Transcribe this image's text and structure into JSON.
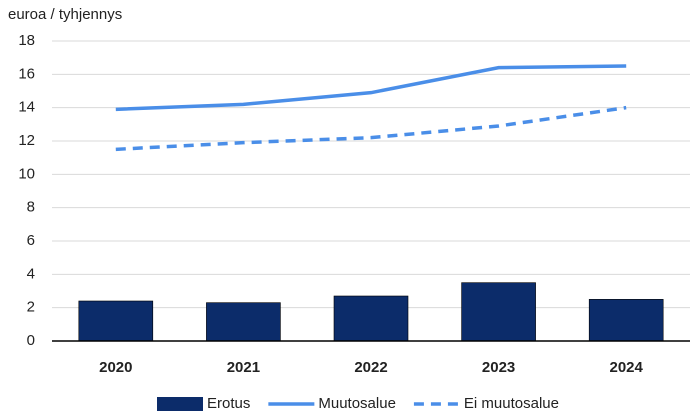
{
  "chart_data": {
    "type": "bar-line",
    "y_axis_label": "euroa / tyhjennys",
    "categories": [
      "2020",
      "2021",
      "2022",
      "2023",
      "2024"
    ],
    "series": [
      {
        "name": "Erotus",
        "type": "bar",
        "color": "#0c2c6a",
        "values": [
          2.4,
          2.3,
          2.7,
          3.5,
          2.5
        ]
      },
      {
        "name": "Muutosalue",
        "type": "line",
        "color": "#4a8ee8",
        "dashed": false,
        "values": [
          13.9,
          14.2,
          14.9,
          16.4,
          16.5
        ]
      },
      {
        "name": "Ei muutosalue",
        "type": "line",
        "color": "#4a8ee8",
        "dashed": true,
        "values": [
          11.5,
          11.9,
          12.2,
          12.9,
          14.0
        ]
      }
    ],
    "ylim": [
      0,
      18
    ],
    "yticks": [
      0,
      2,
      4,
      6,
      8,
      10,
      12,
      14,
      16,
      18
    ],
    "grid": true
  }
}
